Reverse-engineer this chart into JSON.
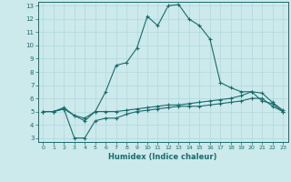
{
  "xlabel": "Humidex (Indice chaleur)",
  "xlim": [
    -0.5,
    23.5
  ],
  "ylim": [
    2.7,
    13.3
  ],
  "xticks": [
    0,
    1,
    2,
    3,
    4,
    5,
    6,
    7,
    8,
    9,
    10,
    11,
    12,
    13,
    14,
    15,
    16,
    17,
    18,
    19,
    20,
    21,
    22,
    23
  ],
  "yticks": [
    3,
    4,
    5,
    6,
    7,
    8,
    9,
    10,
    11,
    12,
    13
  ],
  "background_color": "#cce9ec",
  "line_color": "#1a6b6b",
  "grid_color": "#b0d8dc",
  "line1_x": [
    0,
    1,
    2,
    3,
    4,
    5,
    6,
    7,
    8,
    9,
    10,
    11,
    12,
    13,
    14,
    15,
    16,
    17,
    18,
    19,
    20,
    21,
    22,
    23
  ],
  "line1_y": [
    5.0,
    5.0,
    5.3,
    4.7,
    4.3,
    5.0,
    6.5,
    8.5,
    8.7,
    9.8,
    12.2,
    11.5,
    13.0,
    13.1,
    12.0,
    11.5,
    10.5,
    7.2,
    6.8,
    6.5,
    6.5,
    5.8,
    5.6,
    5.0
  ],
  "line2_x": [
    0,
    1,
    2,
    3,
    4,
    5,
    6,
    7,
    8,
    9,
    10,
    11,
    12,
    13,
    14,
    15,
    16,
    17,
    18,
    19,
    20,
    21,
    22,
    23
  ],
  "line2_y": [
    5.0,
    5.0,
    5.2,
    4.7,
    4.5,
    5.0,
    5.0,
    5.0,
    5.1,
    5.2,
    5.3,
    5.4,
    5.5,
    5.5,
    5.6,
    5.7,
    5.8,
    5.9,
    6.0,
    6.2,
    6.5,
    6.4,
    5.7,
    5.1
  ],
  "line3_x": [
    0,
    1,
    2,
    3,
    4,
    5,
    6,
    7,
    8,
    9,
    10,
    11,
    12,
    13,
    14,
    15,
    16,
    17,
    18,
    19,
    20,
    21,
    22,
    23
  ],
  "line3_y": [
    5.0,
    5.0,
    5.2,
    3.0,
    3.0,
    4.3,
    4.5,
    4.5,
    4.8,
    5.0,
    5.1,
    5.2,
    5.3,
    5.4,
    5.4,
    5.4,
    5.5,
    5.6,
    5.7,
    5.8,
    6.0,
    6.0,
    5.4,
    5.0
  ]
}
